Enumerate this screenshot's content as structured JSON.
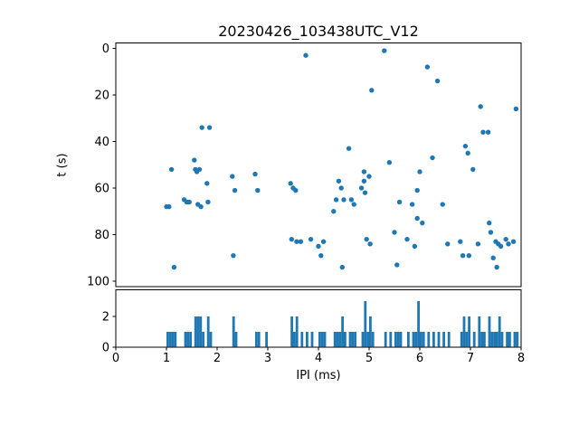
{
  "figure": {
    "title": "20230426_103438UTC_V12",
    "background_color": "#ffffff",
    "accent_color": "#1f77b4"
  },
  "chart_data": [
    {
      "type": "scatter",
      "title": "20230426_103438UTC_V12",
      "xlabel": "",
      "ylabel": "t (s)",
      "xlim": [
        0,
        8
      ],
      "ylim": [
        100,
        0
      ],
      "y_axis_inverted": true,
      "grid": false,
      "legend": "none",
      "marker_color": "#1f77b4",
      "xticks": [
        0,
        1,
        2,
        3,
        4,
        5,
        6,
        7,
        8
      ],
      "yticks": [
        0,
        20,
        40,
        60,
        80,
        100
      ],
      "points": [
        [
          1.0,
          68
        ],
        [
          1.05,
          68
        ],
        [
          1.1,
          52
        ],
        [
          1.15,
          94
        ],
        [
          1.35,
          65
        ],
        [
          1.4,
          66
        ],
        [
          1.45,
          66
        ],
        [
          1.55,
          48
        ],
        [
          1.57,
          52
        ],
        [
          1.6,
          53
        ],
        [
          1.62,
          67
        ],
        [
          1.65,
          52
        ],
        [
          1.68,
          68
        ],
        [
          1.7,
          34
        ],
        [
          1.8,
          58
        ],
        [
          1.82,
          66
        ],
        [
          1.85,
          34
        ],
        [
          2.3,
          55
        ],
        [
          2.32,
          89
        ],
        [
          2.35,
          61
        ],
        [
          2.75,
          54
        ],
        [
          2.8,
          61
        ],
        [
          3.45,
          58
        ],
        [
          3.47,
          82
        ],
        [
          3.5,
          60
        ],
        [
          3.55,
          61
        ],
        [
          3.57,
          83
        ],
        [
          3.65,
          83
        ],
        [
          3.75,
          3
        ],
        [
          3.85,
          82
        ],
        [
          4.0,
          85
        ],
        [
          4.05,
          89
        ],
        [
          4.1,
          83
        ],
        [
          4.3,
          70
        ],
        [
          4.35,
          65
        ],
        [
          4.4,
          57
        ],
        [
          4.45,
          60
        ],
        [
          4.47,
          94
        ],
        [
          4.5,
          65
        ],
        [
          4.6,
          43
        ],
        [
          4.65,
          65
        ],
        [
          4.7,
          67
        ],
        [
          4.85,
          60
        ],
        [
          4.9,
          57
        ],
        [
          4.9,
          53
        ],
        [
          4.92,
          62
        ],
        [
          4.95,
          82
        ],
        [
          5.0,
          55
        ],
        [
          5.02,
          84
        ],
        [
          5.05,
          18
        ],
        [
          5.3,
          1
        ],
        [
          5.4,
          49
        ],
        [
          5.5,
          79
        ],
        [
          5.55,
          93
        ],
        [
          5.6,
          66
        ],
        [
          5.75,
          82
        ],
        [
          5.85,
          67
        ],
        [
          5.9,
          85
        ],
        [
          5.95,
          61
        ],
        [
          5.95,
          73
        ],
        [
          6.0,
          53
        ],
        [
          6.05,
          75
        ],
        [
          6.15,
          8
        ],
        [
          6.25,
          47
        ],
        [
          6.35,
          14
        ],
        [
          6.45,
          67
        ],
        [
          6.55,
          84
        ],
        [
          6.8,
          83
        ],
        [
          6.85,
          89
        ],
        [
          6.9,
          42
        ],
        [
          6.95,
          45
        ],
        [
          6.97,
          89
        ],
        [
          7.05,
          52
        ],
        [
          7.15,
          84
        ],
        [
          7.2,
          25
        ],
        [
          7.25,
          36
        ],
        [
          7.35,
          36
        ],
        [
          7.37,
          75
        ],
        [
          7.4,
          79
        ],
        [
          7.45,
          90
        ],
        [
          7.5,
          83
        ],
        [
          7.52,
          94
        ],
        [
          7.55,
          84
        ],
        [
          7.6,
          85
        ],
        [
          7.7,
          82
        ],
        [
          7.75,
          84
        ],
        [
          7.85,
          83
        ],
        [
          7.9,
          26
        ]
      ]
    },
    {
      "type": "bar",
      "title": "",
      "xlabel": "IPI (ms)",
      "ylabel": "",
      "xlim": [
        0,
        8
      ],
      "ylim": [
        0,
        3.7
      ],
      "grid": false,
      "legend": "none",
      "bar_color": "#1f77b4",
      "bar_width": 0.05,
      "xticks": [
        0,
        1,
        2,
        3,
        4,
        5,
        6,
        7,
        8
      ],
      "yticks": [
        0,
        2
      ],
      "bars": [
        [
          1.0,
          1
        ],
        [
          1.05,
          1
        ],
        [
          1.1,
          1
        ],
        [
          1.15,
          1
        ],
        [
          1.35,
          1
        ],
        [
          1.4,
          1
        ],
        [
          1.45,
          1
        ],
        [
          1.55,
          2
        ],
        [
          1.6,
          2
        ],
        [
          1.65,
          2
        ],
        [
          1.7,
          1
        ],
        [
          1.8,
          2
        ],
        [
          1.85,
          1
        ],
        [
          2.3,
          2
        ],
        [
          2.35,
          1
        ],
        [
          2.75,
          1
        ],
        [
          2.8,
          1
        ],
        [
          2.95,
          1
        ],
        [
          3.45,
          2
        ],
        [
          3.5,
          1
        ],
        [
          3.55,
          2
        ],
        [
          3.65,
          1
        ],
        [
          3.75,
          1
        ],
        [
          3.85,
          1
        ],
        [
          4.0,
          1
        ],
        [
          4.05,
          1
        ],
        [
          4.1,
          1
        ],
        [
          4.3,
          1
        ],
        [
          4.35,
          1
        ],
        [
          4.4,
          1
        ],
        [
          4.45,
          2
        ],
        [
          4.5,
          1
        ],
        [
          4.6,
          1
        ],
        [
          4.65,
          1
        ],
        [
          4.7,
          1
        ],
        [
          4.85,
          1
        ],
        [
          4.9,
          3
        ],
        [
          4.95,
          1
        ],
        [
          5.0,
          2
        ],
        [
          5.05,
          1
        ],
        [
          5.3,
          1
        ],
        [
          5.4,
          1
        ],
        [
          5.5,
          1
        ],
        [
          5.55,
          1
        ],
        [
          5.6,
          1
        ],
        [
          5.75,
          1
        ],
        [
          5.85,
          1
        ],
        [
          5.9,
          1
        ],
        [
          5.95,
          3
        ],
        [
          6.0,
          1
        ],
        [
          6.05,
          1
        ],
        [
          6.15,
          1
        ],
        [
          6.25,
          1
        ],
        [
          6.35,
          1
        ],
        [
          6.45,
          1
        ],
        [
          6.55,
          1
        ],
        [
          6.8,
          1
        ],
        [
          6.85,
          2
        ],
        [
          6.9,
          1
        ],
        [
          6.95,
          2
        ],
        [
          7.05,
          1
        ],
        [
          7.15,
          2
        ],
        [
          7.2,
          1
        ],
        [
          7.25,
          1
        ],
        [
          7.35,
          2
        ],
        [
          7.4,
          1
        ],
        [
          7.45,
          1
        ],
        [
          7.5,
          1
        ],
        [
          7.55,
          2
        ],
        [
          7.6,
          1
        ],
        [
          7.7,
          1
        ],
        [
          7.75,
          1
        ],
        [
          7.85,
          1
        ],
        [
          7.9,
          1
        ]
      ]
    }
  ]
}
